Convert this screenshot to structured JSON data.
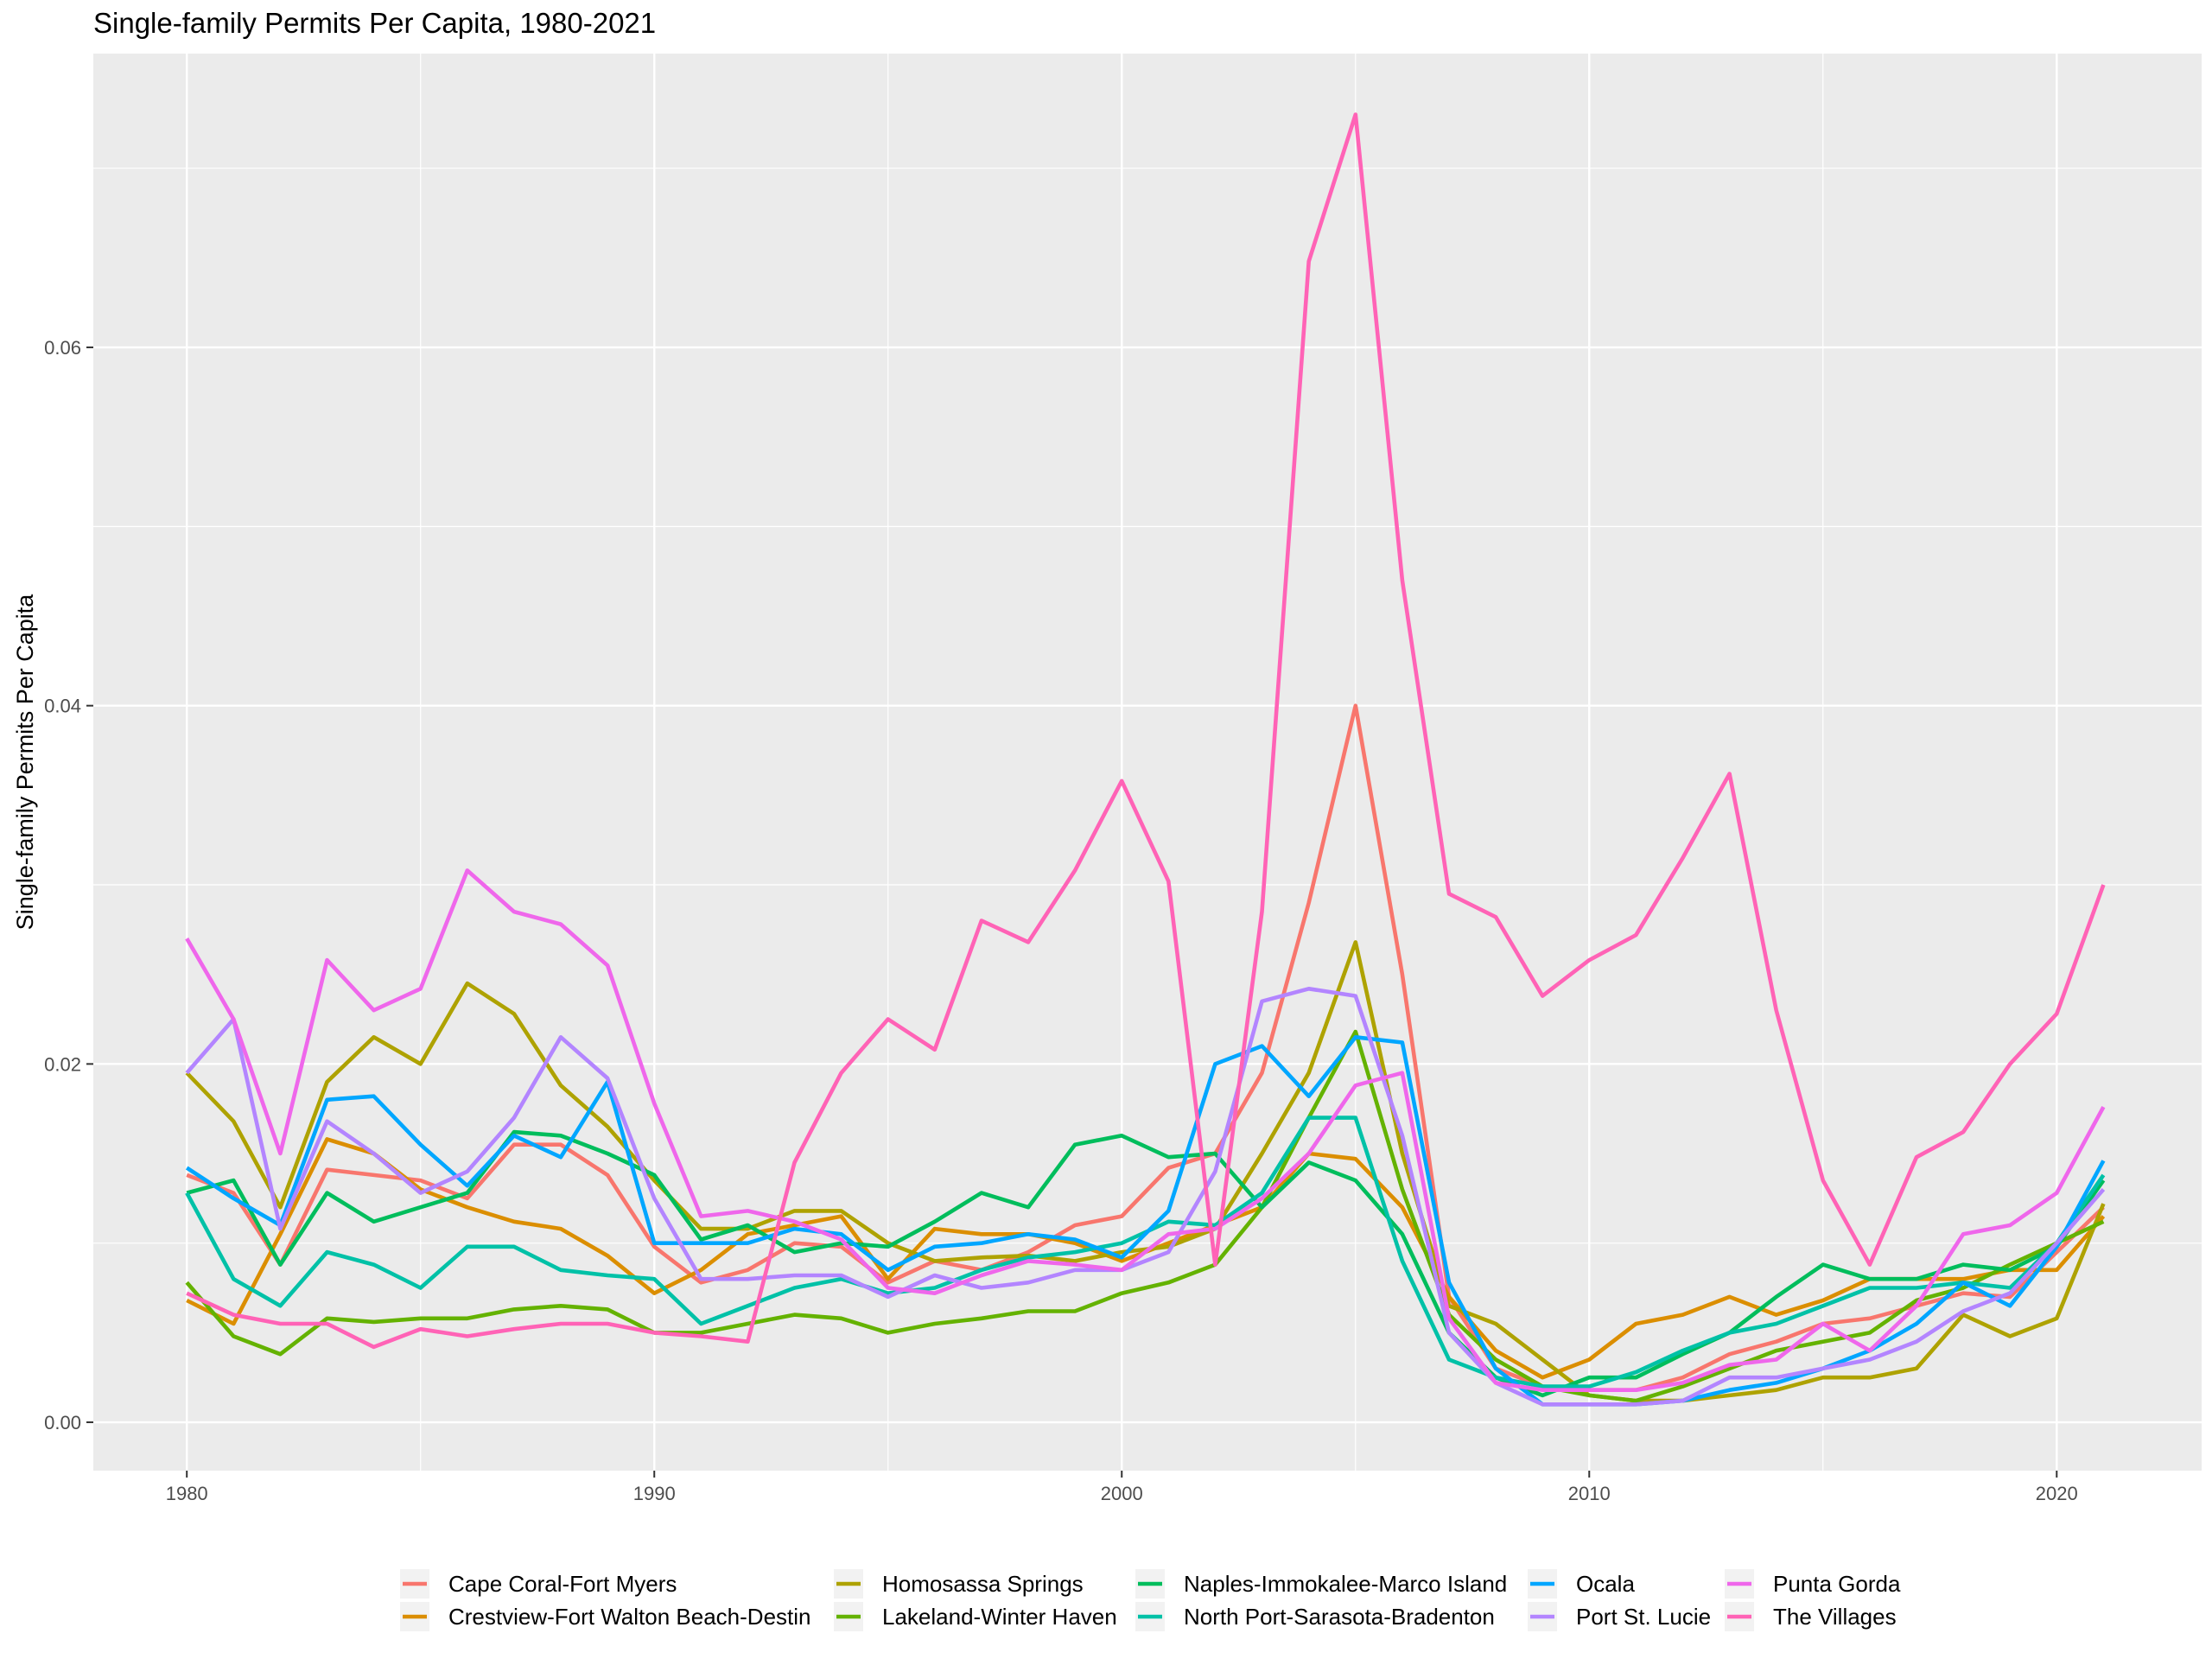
{
  "chart_data": {
    "type": "line",
    "title": "Single-family Permits Per Capita, 1980-2021",
    "xlabel": "",
    "ylabel": "Single-family Permits Per Capita",
    "xlim": [
      1978,
      2023.1
    ],
    "ylim": [
      -0.0027,
      0.0764
    ],
    "x_ticks": [
      1980,
      1990,
      2000,
      2010,
      2020
    ],
    "x_tick_labels": [
      "1980",
      "1990",
      "2000",
      "2010",
      "2020"
    ],
    "y_ticks": [
      0.0,
      0.02,
      0.04,
      0.06
    ],
    "y_tick_labels": [
      "0.00",
      "0.02",
      "0.04",
      "0.06"
    ],
    "grid": true,
    "legend_position": "bottom",
    "x": [
      1980,
      1981,
      1982,
      1983,
      1984,
      1985,
      1986,
      1987,
      1988,
      1989,
      1990,
      1991,
      1992,
      1993,
      1994,
      1995,
      1996,
      1997,
      1998,
      1999,
      2000,
      2001,
      2002,
      2003,
      2004,
      2005,
      2006,
      2007,
      2008,
      2009,
      2010,
      2011,
      2012,
      2013,
      2014,
      2015,
      2016,
      2017,
      2018,
      2019,
      2020,
      2021
    ],
    "series": [
      {
        "name": "Cape Coral-Fort Myers",
        "color": "#F8766D",
        "values": [
          0.0138,
          0.0128,
          0.0088,
          0.0141,
          0.0138,
          0.0135,
          0.0125,
          0.0155,
          0.0155,
          0.0138,
          0.0098,
          0.0078,
          0.0085,
          0.01,
          0.0098,
          0.0078,
          0.009,
          0.0085,
          0.0095,
          0.011,
          0.0115,
          0.0142,
          0.015,
          0.0195,
          0.029,
          0.04,
          0.025,
          0.007,
          0.003,
          0.002,
          0.0018,
          0.0018,
          0.0025,
          0.0038,
          0.0045,
          0.0055,
          0.0058,
          0.0065,
          0.0072,
          0.007,
          0.0095,
          0.012
        ]
      },
      {
        "name": "Crestview-Fort Walton Beach-Destin",
        "color": "#DB8E00",
        "values": [
          0.0068,
          0.0055,
          0.0105,
          0.0158,
          0.015,
          0.013,
          0.012,
          0.0112,
          0.0108,
          0.0093,
          0.0072,
          0.0085,
          0.0105,
          0.011,
          0.0115,
          0.008,
          0.0108,
          0.0105,
          0.0105,
          0.01,
          0.009,
          0.01,
          0.011,
          0.012,
          0.015,
          0.0147,
          0.012,
          0.007,
          0.004,
          0.0025,
          0.0035,
          0.0055,
          0.006,
          0.007,
          0.006,
          0.0068,
          0.008,
          0.008,
          0.008,
          0.0085,
          0.0085,
          0.0115
        ]
      },
      {
        "name": "Homosassa Springs",
        "color": "#AEA200",
        "values": [
          0.0195,
          0.0168,
          0.012,
          0.019,
          0.0215,
          0.02,
          0.0245,
          0.0228,
          0.0188,
          0.0165,
          0.0135,
          0.0108,
          0.0108,
          0.0118,
          0.0118,
          0.01,
          0.009,
          0.0092,
          0.0093,
          0.009,
          0.0095,
          0.0098,
          0.0108,
          0.015,
          0.0195,
          0.0268,
          0.015,
          0.0065,
          0.0055,
          0.0035,
          0.0015,
          0.0012,
          0.0012,
          0.0015,
          0.0018,
          0.0025,
          0.0025,
          0.003,
          0.006,
          0.0048,
          0.0058,
          0.0122
        ]
      },
      {
        "name": "Lakeland-Winter Haven",
        "color": "#64B200",
        "values": [
          0.0078,
          0.0048,
          0.0038,
          0.0058,
          0.0056,
          0.0058,
          0.0058,
          0.0063,
          0.0065,
          0.0063,
          0.005,
          0.005,
          0.0055,
          0.006,
          0.0058,
          0.005,
          0.0055,
          0.0058,
          0.0062,
          0.0062,
          0.0072,
          0.0078,
          0.0088,
          0.012,
          0.017,
          0.0218,
          0.013,
          0.006,
          0.0035,
          0.002,
          0.0015,
          0.0012,
          0.002,
          0.003,
          0.004,
          0.0045,
          0.005,
          0.0068,
          0.0075,
          0.0088,
          0.01,
          0.0112
        ]
      },
      {
        "name": "Naples-Immokalee-Marco Island",
        "color": "#00BD5C",
        "values": [
          0.0128,
          0.0135,
          0.0088,
          0.0128,
          0.0112,
          0.012,
          0.0128,
          0.0162,
          0.016,
          0.015,
          0.0138,
          0.0102,
          0.011,
          0.0095,
          0.01,
          0.0098,
          0.0112,
          0.0128,
          0.012,
          0.0155,
          0.016,
          0.0148,
          0.015,
          0.012,
          0.0145,
          0.0135,
          0.0105,
          0.005,
          0.0025,
          0.0015,
          0.0025,
          0.0025,
          0.0038,
          0.005,
          0.007,
          0.0088,
          0.008,
          0.008,
          0.0088,
          0.0085,
          0.0098,
          0.0135
        ]
      },
      {
        "name": "North Port-Sarasota-Bradenton",
        "color": "#00C1A7",
        "values": [
          0.0128,
          0.008,
          0.0065,
          0.0095,
          0.0088,
          0.0075,
          0.0098,
          0.0098,
          0.0085,
          0.0082,
          0.008,
          0.0055,
          0.0065,
          0.0075,
          0.008,
          0.0072,
          0.0075,
          0.0085,
          0.0092,
          0.0095,
          0.01,
          0.0112,
          0.011,
          0.0128,
          0.017,
          0.017,
          0.009,
          0.0035,
          0.0025,
          0.002,
          0.002,
          0.0028,
          0.004,
          0.005,
          0.0055,
          0.0065,
          0.0075,
          0.0075,
          0.0078,
          0.0075,
          0.01,
          0.0138
        ]
      },
      {
        "name": "Ocala",
        "color": "#00A6FF",
        "values": [
          0.0142,
          0.0125,
          0.011,
          0.018,
          0.0182,
          0.0155,
          0.0132,
          0.016,
          0.0148,
          0.019,
          0.01,
          0.01,
          0.01,
          0.0108,
          0.0105,
          0.0085,
          0.0098,
          0.01,
          0.0105,
          0.0102,
          0.0092,
          0.0118,
          0.02,
          0.021,
          0.0182,
          0.0215,
          0.0212,
          0.0078,
          0.003,
          0.001,
          0.001,
          0.001,
          0.0012,
          0.0018,
          0.0022,
          0.003,
          0.004,
          0.0055,
          0.0078,
          0.0065,
          0.0098,
          0.0146
        ]
      },
      {
        "name": "Port St. Lucie",
        "color": "#B385FF",
        "values": [
          0.0195,
          0.0225,
          0.0108,
          0.0168,
          0.015,
          0.0128,
          0.014,
          0.017,
          0.0215,
          0.0192,
          0.0125,
          0.008,
          0.008,
          0.0082,
          0.0082,
          0.007,
          0.0082,
          0.0075,
          0.0078,
          0.0085,
          0.0085,
          0.0095,
          0.014,
          0.0235,
          0.0242,
          0.0238,
          0.016,
          0.005,
          0.0022,
          0.001,
          0.001,
          0.001,
          0.0012,
          0.0025,
          0.0025,
          0.003,
          0.0035,
          0.0045,
          0.0062,
          0.0072,
          0.01,
          0.013
        ]
      },
      {
        "name": "Punta Gorda",
        "color": "#EF67EB",
        "values": [
          0.027,
          0.0225,
          0.015,
          0.0258,
          0.023,
          0.0242,
          0.0308,
          0.0285,
          0.0278,
          0.0255,
          0.0178,
          0.0115,
          0.0118,
          0.0112,
          0.0102,
          0.0075,
          0.0072,
          0.0082,
          0.009,
          0.0088,
          0.0085,
          0.0105,
          0.0108,
          0.0125,
          0.015,
          0.0188,
          0.0195,
          0.0058,
          0.0022,
          0.0018,
          0.0018,
          0.0018,
          0.0022,
          0.0032,
          0.0035,
          0.0055,
          0.004,
          0.0065,
          0.0105,
          0.011,
          0.0128,
          0.0176
        ]
      },
      {
        "name": "The Villages",
        "color": "#FF63B6",
        "values": [
          0.0072,
          0.006,
          0.0055,
          0.0055,
          0.0042,
          0.0052,
          0.0048,
          0.0052,
          0.0055,
          0.0055,
          0.005,
          0.0048,
          0.0045,
          0.0145,
          0.0195,
          0.0225,
          0.0208,
          0.028,
          0.0268,
          0.0308,
          0.0358,
          0.0302,
          0.0088,
          0.0285,
          0.0648,
          0.073,
          0.047,
          0.0295,
          0.0282,
          0.0238,
          0.0258,
          0.0272,
          0.0315,
          0.0362,
          0.023,
          0.0135,
          0.0088,
          0.0148,
          0.0162,
          0.02,
          0.0228,
          0.03
        ]
      }
    ]
  }
}
